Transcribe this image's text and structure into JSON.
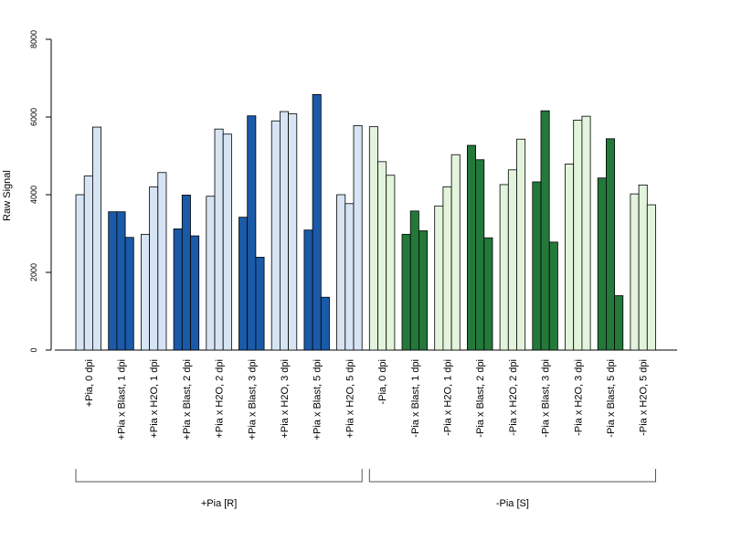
{
  "chart_data": {
    "type": "bar",
    "title": "",
    "xlabel": "",
    "ylabel": "Raw Signal",
    "ylim": [
      0,
      8000
    ],
    "yticks": [
      0,
      2000,
      4000,
      6000,
      8000
    ],
    "ytick_labels": [
      "0",
      "2000",
      "4000",
      "6000",
      "8000"
    ],
    "grid": false,
    "legend": "none",
    "categories": [
      "+Pia, 0 dpi",
      "+Pia x Blast, 1 dpi",
      "+Pia x H2O, 1 dpi",
      "+Pia x Blast, 2 dpi",
      "+Pia x H2O, 2 dpi",
      "+Pia x Blast, 3 dpi",
      "+Pia x H2O, 3 dpi",
      "+Pia x Blast, 5 dpi",
      "+Pia x H2O, 5 dpi",
      "-Pia, 0 dpi",
      "-Pia x Blast, 1 dpi",
      "-Pia x H2O, 1 dpi",
      "-Pia x Blast, 2 dpi",
      "-Pia x H2O, 2 dpi",
      "-Pia x Blast, 3 dpi",
      "-Pia x H2O, 3 dpi",
      "-Pia x Blast, 5 dpi",
      "-Pia x H2O, 5 dpi"
    ],
    "values": [
      [
        4000,
        4480,
        5740
      ],
      [
        3560,
        3560,
        2900
      ],
      [
        2980,
        4200,
        4570
      ],
      [
        3120,
        3990,
        2940
      ],
      [
        3960,
        5690,
        5560
      ],
      [
        3420,
        6030,
        2390
      ],
      [
        5900,
        6140,
        6080
      ],
      [
        3090,
        6580,
        1360
      ],
      [
        4000,
        3770,
        5780
      ],
      [
        5750,
        4850,
        4500
      ],
      [
        2980,
        3580,
        3070
      ],
      [
        3710,
        4200,
        5030
      ],
      [
        5270,
        4900,
        2890
      ],
      [
        4260,
        4640,
        5430
      ],
      [
        4330,
        6160,
        2780
      ],
      [
        4790,
        5920,
        6020
      ],
      [
        4430,
        5440,
        1400
      ],
      [
        4020,
        4250,
        3740
      ]
    ],
    "bar_colors": [
      "#d6e4f3",
      "#1a5aa8",
      "#d6e4f3",
      "#1a5aa8",
      "#d6e4f3",
      "#1a5aa8",
      "#d6e4f3",
      "#1a5aa8",
      "#d6e4f3",
      "#e3f4dd",
      "#23783a",
      "#e3f4dd",
      "#23783a",
      "#e3f4dd",
      "#23783a",
      "#e3f4dd",
      "#23783a",
      "#e3f4dd"
    ],
    "groups": [
      {
        "label": "+Pia [R]",
        "first": 0,
        "last": 8
      },
      {
        "label": "-Pia [S]",
        "first": 9,
        "last": 17
      }
    ]
  }
}
